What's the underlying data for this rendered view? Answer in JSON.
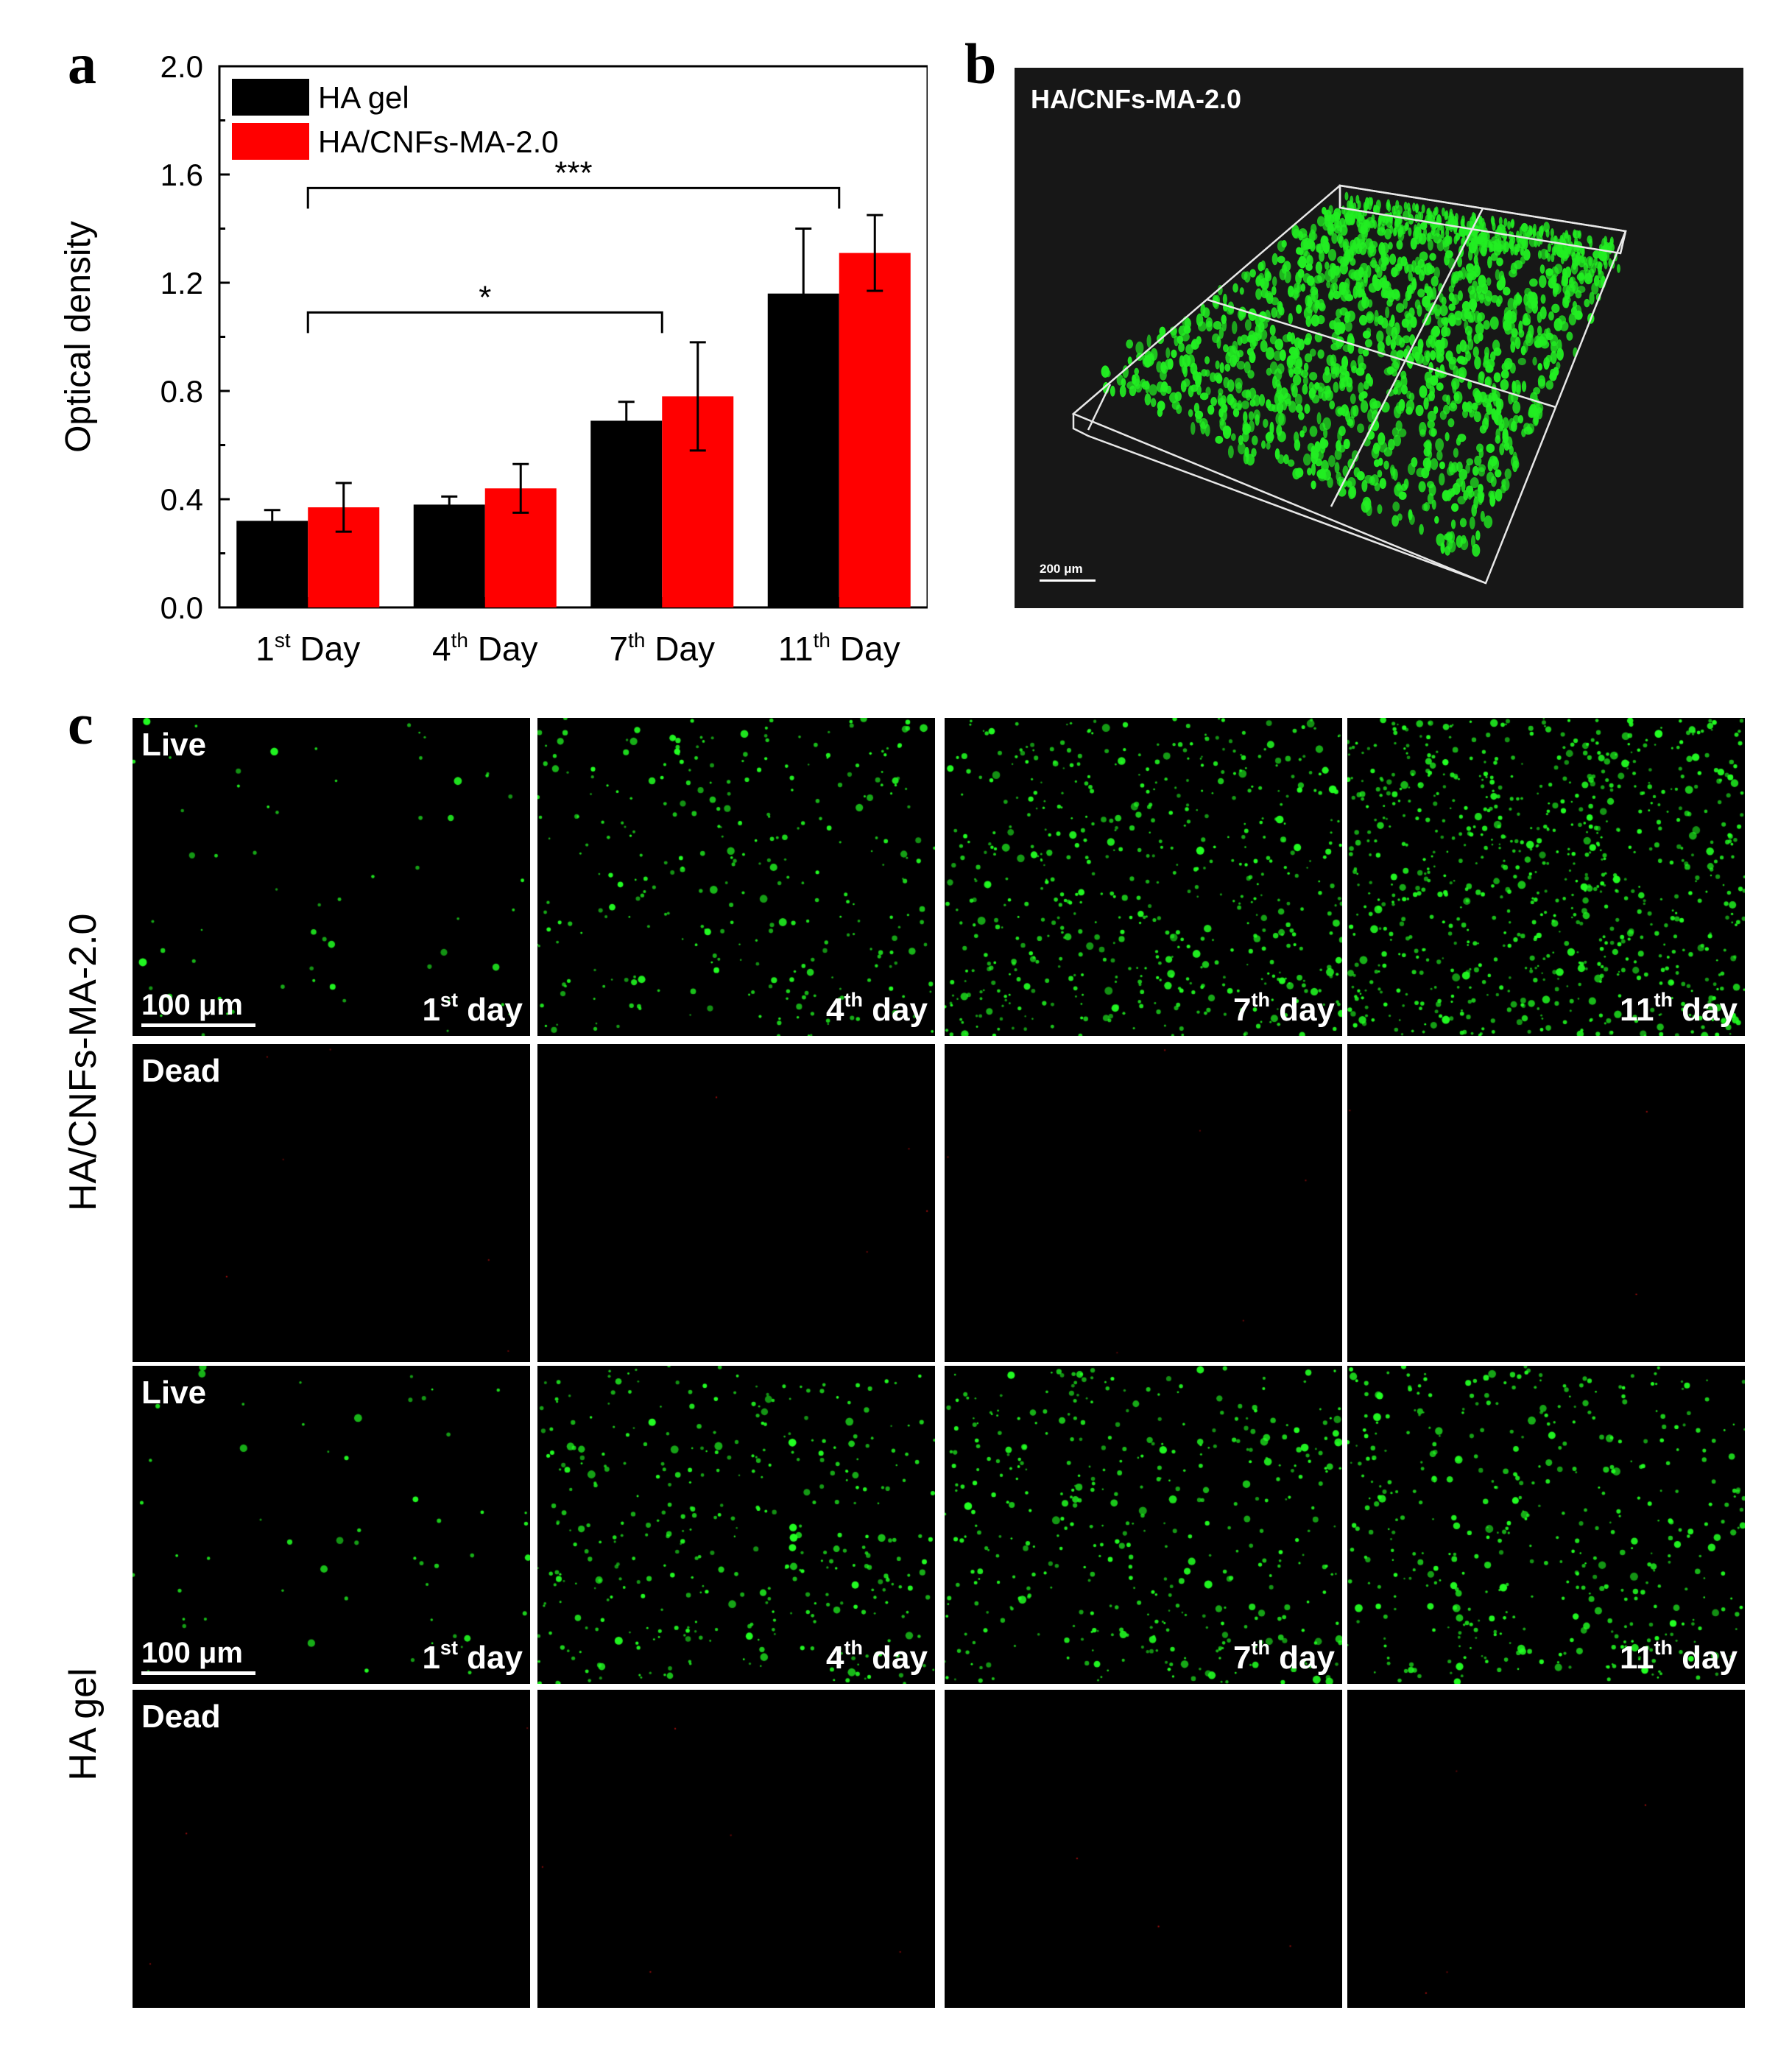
{
  "panel_letters": {
    "a": "a",
    "b": "b",
    "c": "c"
  },
  "chart_data": {
    "type": "bar",
    "ylabel": "Optical density",
    "ylim": [
      0,
      2.0
    ],
    "yticks": [
      "0.0",
      "0.4",
      "0.8",
      "1.2",
      "1.6",
      "2.0"
    ],
    "categories": [
      {
        "num": "1",
        "sup": "st",
        "word": "Day"
      },
      {
        "num": "4",
        "sup": "th",
        "word": "Day"
      },
      {
        "num": "7",
        "sup": "th",
        "word": "Day"
      },
      {
        "num": "11",
        "sup": "th",
        "word": "Day"
      }
    ],
    "series": [
      {
        "name": "HA gel",
        "color": "#000000",
        "values": [
          0.32,
          0.38,
          0.69,
          1.16
        ],
        "errors": [
          0.04,
          0.03,
          0.07,
          0.24
        ]
      },
      {
        "name": "HA/CNFs-MA-2.0",
        "color": "#ff0000",
        "values": [
          0.37,
          0.44,
          0.78,
          1.31
        ],
        "errors": [
          0.09,
          0.09,
          0.2,
          0.14
        ]
      }
    ],
    "legend_position": "top-left",
    "significance": [
      {
        "label": "*",
        "from_category": 0,
        "to_category": 2
      },
      {
        "label": "***",
        "from_category": 0,
        "to_category": 3
      }
    ]
  },
  "panel_b": {
    "title": "HA/CNFs-MA-2.0",
    "scale_bar": "200 μm",
    "cell_color": "#22ee22"
  },
  "panel_c": {
    "row_groups": [
      {
        "label": "HA/CNFs-MA-2.0"
      },
      {
        "label": "HA gel"
      }
    ],
    "live_label": "Live",
    "dead_label": "Dead",
    "scale_bar": "100 μm",
    "days": [
      {
        "num": "1",
        "sup": "st",
        "word": "day"
      },
      {
        "num": "4",
        "sup": "th",
        "word": "day"
      },
      {
        "num": "7",
        "sup": "th",
        "word": "day"
      },
      {
        "num": "11",
        "sup": "th",
        "word": "day"
      }
    ],
    "live_color": "#22ff22",
    "dead_color": "#cc1111"
  }
}
